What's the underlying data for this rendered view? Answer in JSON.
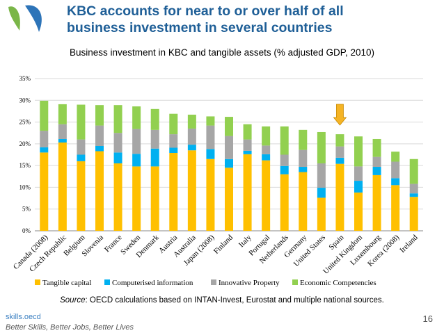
{
  "slide": {
    "title_line1": "KBC accounts for near to or over half of all",
    "title_line2": "business investment in several countries",
    "source_label": "Source",
    "source_text": ": OECD calculations based on INTAN-Invest, Eurostat and  multiple national sources.",
    "footer_brand": "skills.oecd",
    "footer_tagline": "Better Skills, Better Jobs, Better Lives",
    "page_number": "16"
  },
  "colors": {
    "title": "#1f5f97",
    "tangible": "#ffc000",
    "computerised": "#00b0f0",
    "innovative": "#a6a6a6",
    "economic": "#92d050",
    "arrow": "#f5b425",
    "logo_green": "#7ab648",
    "logo_blue": "#2d74b8"
  },
  "chart_data": {
    "type": "bar",
    "stacked": true,
    "title": "Business investment in KBC and tangible assets (% adjusted GDP, 2010)",
    "categories": [
      "Canada (2008)",
      "Czech Republic",
      "Belgium",
      "Slovenia",
      "France",
      "Sweden",
      "Denmark",
      "Austria",
      "Australia",
      "Japan (2008)",
      "Finland",
      "Italy",
      "Portugal",
      "Netherlands",
      "Germany",
      "United States",
      "Spain",
      "United Kingdom",
      "Luxembourg",
      "Korea (2008)",
      "Ireland"
    ],
    "series": [
      {
        "name": "Tangible capital",
        "values": [
          18.0,
          20.3,
          16.0,
          18.3,
          15.5,
          14.8,
          14.8,
          17.9,
          18.5,
          16.5,
          14.5,
          17.6,
          16.2,
          13.0,
          13.5,
          7.6,
          15.4,
          8.8,
          12.8,
          10.5,
          7.8
        ]
      },
      {
        "name": "Computerised information",
        "values": [
          1.2,
          0.8,
          1.5,
          1.2,
          2.5,
          2.9,
          4.1,
          1.2,
          1.3,
          2.3,
          2.0,
          0.8,
          1.4,
          1.9,
          1.2,
          2.3,
          1.4,
          2.7,
          1.9,
          1.6,
          0.8
        ]
      },
      {
        "name": "Innovative Property",
        "values": [
          3.8,
          3.4,
          3.5,
          4.7,
          4.5,
          5.7,
          4.3,
          3.1,
          3.7,
          5.4,
          5.3,
          2.6,
          2.0,
          2.6,
          3.9,
          5.6,
          2.6,
          3.3,
          2.3,
          3.8,
          2.2
        ]
      },
      {
        "name": "Economic Competencies",
        "values": [
          6.9,
          4.6,
          8.0,
          4.7,
          6.4,
          5.2,
          4.8,
          4.7,
          3.2,
          2.1,
          4.4,
          3.5,
          4.4,
          6.5,
          4.6,
          7.2,
          2.8,
          6.9,
          4.1,
          2.3,
          5.7
        ]
      }
    ],
    "y_ticks": [
      "0%",
      "5%",
      "10%",
      "15%",
      "20%",
      "25%",
      "30%",
      "35%"
    ],
    "ylim": [
      0,
      35
    ],
    "y_unit": "%",
    "legend_position": "bottom",
    "highlight_category": "Spain"
  }
}
